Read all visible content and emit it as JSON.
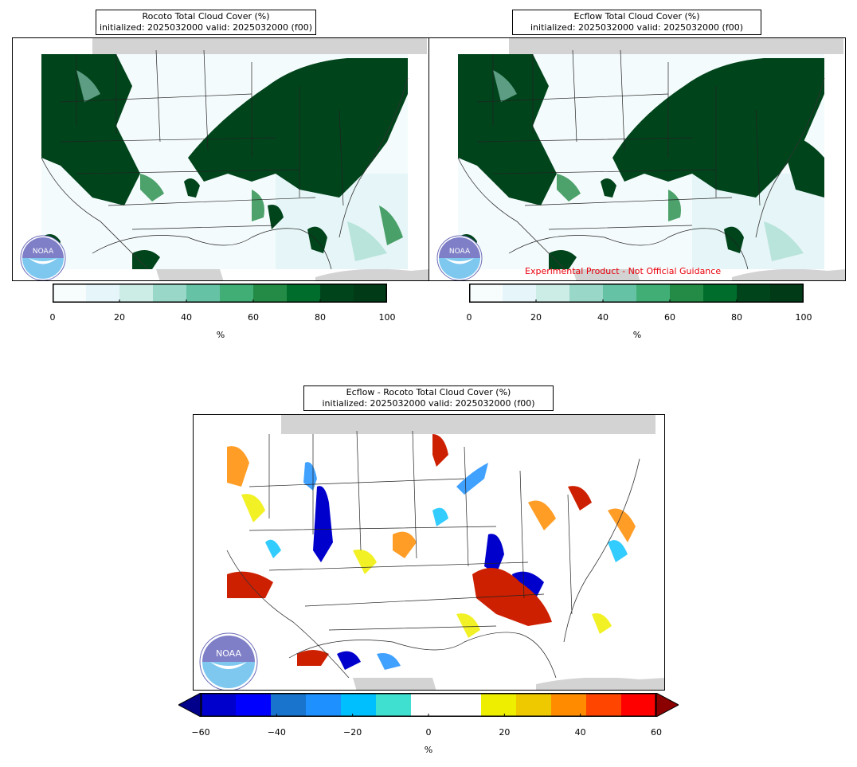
{
  "panels": [
    {
      "title_line1": "Rocoto Total Cloud Cover (%)",
      "title_line2": "initialized: 2025032000 valid: 2025032000 (f00)"
    },
    {
      "title_line1": "Ecflow Total Cloud Cover (%)",
      "title_line2": "initialized: 2025032000 valid: 2025032000 (f00)",
      "note": "Experimental Product - Not Official Guidance"
    },
    {
      "title_line1": "Ecflow - Rocoto Total Cloud Cover (%)",
      "title_line2": "initialized: 2025032000 valid: 2025032000 (f00)"
    }
  ],
  "logo_text": "NOAA",
  "colorbar_cloud": {
    "unit": "%",
    "ticks": [
      "0",
      "20",
      "40",
      "60",
      "80",
      "100"
    ],
    "colors": [
      "#f7fcfd",
      "#e5f5f9",
      "#ccece6",
      "#99d8c9",
      "#66c2a4",
      "#41ae76",
      "#238b45",
      "#006d2c",
      "#00441b",
      "#003a17"
    ]
  },
  "colorbar_diff": {
    "unit": "%",
    "ticks": [
      "−60",
      "−40",
      "−20",
      "0",
      "20",
      "40",
      "60"
    ],
    "colors": [
      "#0000cd",
      "#0000ff",
      "#1874cd",
      "#1e90ff",
      "#00bfff",
      "#40e0d0",
      "#ffffff",
      "#ffffff",
      "#eeee00",
      "#eec900",
      "#ff8c00",
      "#ff4500",
      "#ff0000"
    ],
    "extend_low": "#00008b",
    "extend_high": "#8b0000"
  }
}
